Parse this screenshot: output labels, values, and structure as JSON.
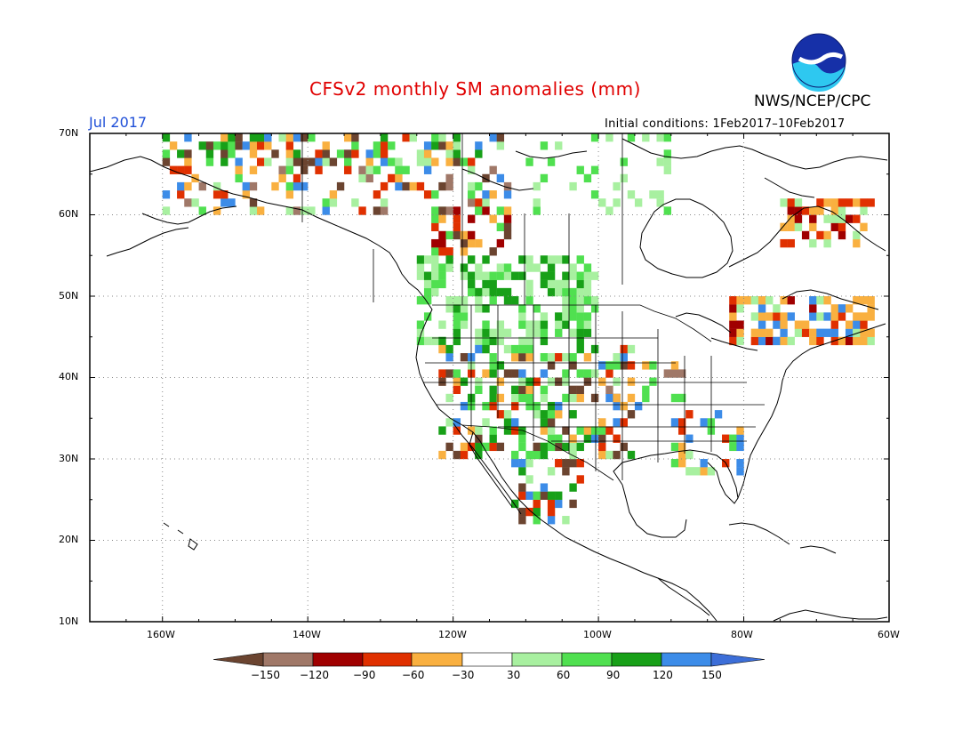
{
  "header": {
    "title": "CFSv2 monthly SM anomalies (mm)",
    "agency": "NWS/NCEP/CPC",
    "logo_text": "NOAA",
    "month": "Jul 2017",
    "initial_conditions": "Initial conditions: 1Feb2017–10Feb2017"
  },
  "map": {
    "lat_labels": [
      "70N",
      "60N",
      "50N",
      "40N",
      "30N",
      "20N",
      "10N"
    ],
    "lon_labels": [
      "160W",
      "140W",
      "120W",
      "100W",
      "80W",
      "60W"
    ],
    "lat_range": [
      10,
      70
    ],
    "lon_range": [
      -170,
      -60
    ],
    "gridlines": "dotted",
    "colors": {
      "coast": "#000000",
      "grid": "#888888"
    }
  },
  "colorbar": {
    "labels": [
      "−150",
      "−120",
      "−90",
      "−60",
      "−30",
      "30",
      "60",
      "90",
      "120",
      "150"
    ],
    "colors": [
      "#6b4430",
      "#a07868",
      "#a00000",
      "#e03000",
      "#ff4a00",
      "#f9b040",
      "#ffffff",
      "#a8f0a0",
      "#50e050",
      "#18a018",
      "#3c8ce8",
      "#3c6ed8"
    ]
  }
}
